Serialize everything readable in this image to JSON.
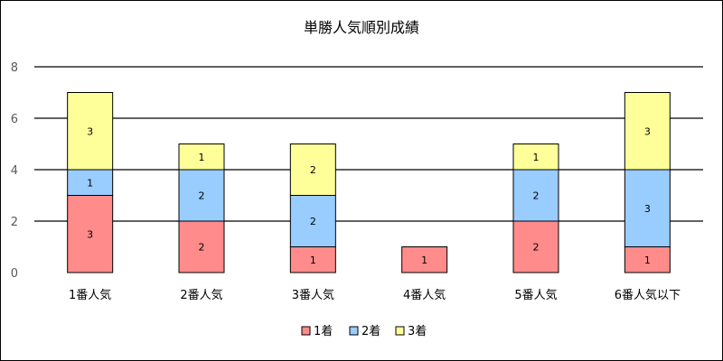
{
  "chart_data": {
    "type": "bar",
    "stacked": true,
    "title": "単勝人気順別成績",
    "xlabel": "",
    "ylabel": "",
    "ylim": [
      0,
      8
    ],
    "yticks": [
      0,
      2,
      4,
      6,
      8
    ],
    "grid": true,
    "legend_position": "bottom",
    "categories": [
      "1番人気",
      "2番人気",
      "3番人気",
      "4番人気",
      "5番人気",
      "6番人気以下"
    ],
    "series": [
      {
        "name": "1着",
        "color": "#FF8B8B",
        "values": [
          3,
          2,
          1,
          1,
          2,
          1
        ]
      },
      {
        "name": "2着",
        "color": "#99CCFF",
        "values": [
          1,
          2,
          2,
          0,
          2,
          3
        ]
      },
      {
        "name": "3着",
        "color": "#FFFF99",
        "values": [
          3,
          1,
          2,
          0,
          1,
          3
        ]
      }
    ]
  }
}
